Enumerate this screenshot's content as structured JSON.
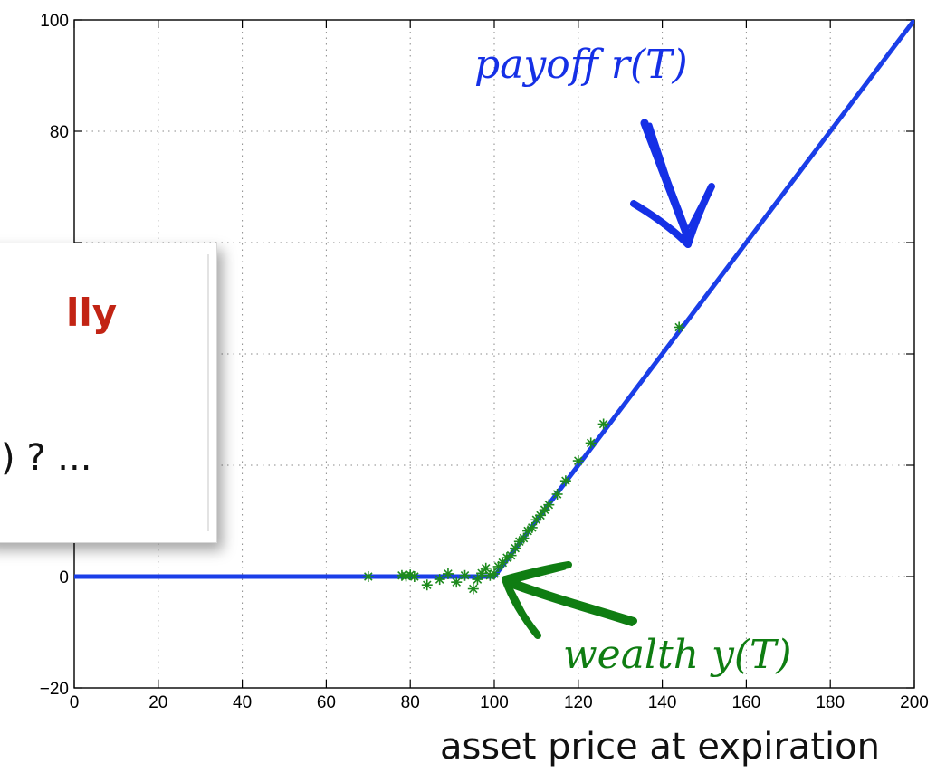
{
  "chart_data": {
    "type": "line",
    "xlabel": "asset price at expiration",
    "ylabel": "",
    "title": "",
    "xlim": [
      0,
      200
    ],
    "ylim": [
      -20,
      100
    ],
    "xticks": [
      0,
      20,
      40,
      60,
      80,
      100,
      120,
      140,
      160,
      180,
      200
    ],
    "yticks": [
      -20,
      0,
      80,
      100
    ],
    "ytick_labels": [
      "−20",
      "0",
      "80",
      "100"
    ],
    "grid": true,
    "series": [
      {
        "color": "#1a3ee8",
        "style": "line",
        "x": [
          0,
          100,
          200
        ],
        "y": [
          0,
          0,
          100
        ]
      },
      {
        "color": "#1d8a1d",
        "style": "asterisk",
        "x": [
          70,
          78,
          79,
          80,
          81,
          84,
          87,
          89,
          91,
          93,
          95,
          96,
          97,
          98,
          99,
          100,
          101,
          102,
          103,
          104,
          105,
          106,
          107,
          108,
          109,
          110,
          111,
          112,
          113,
          115,
          117,
          120,
          123,
          126,
          144
        ],
        "y": [
          0,
          0.2,
          0.1,
          0.3,
          0,
          -1.5,
          -0.5,
          0.5,
          -1,
          0.2,
          -2.2,
          -0.5,
          0.6,
          1.5,
          0.2,
          0.5,
          1.8,
          2.5,
          3.4,
          3.8,
          5.1,
          6.3,
          6.9,
          8.2,
          8.8,
          10.2,
          11,
          12,
          12.9,
          14.8,
          17.2,
          20.8,
          24,
          27.4,
          44.8
        ]
      }
    ],
    "annotations": [
      {
        "text": "payoff r(T)",
        "color": "#1530e6",
        "points_to": [
          145,
          60
        ]
      },
      {
        "text": "wealth y(T)",
        "color": "#0f7d12",
        "points_to": [
          102,
          -1
        ]
      }
    ]
  },
  "overlay": {
    "heading": "lly",
    "body": "̃) ? ..."
  },
  "colors": {
    "payoff": "#1a3ee8",
    "wealth": "#1d8a1d",
    "heading": "#c22414"
  }
}
